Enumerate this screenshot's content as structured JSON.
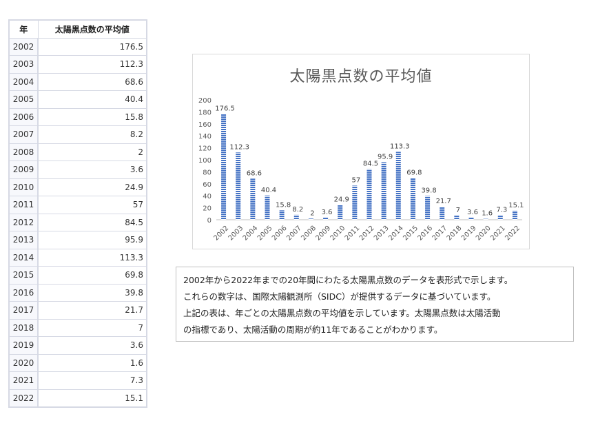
{
  "table": {
    "header_year": "年",
    "header_value": "太陽黒点数の平均値",
    "rows": [
      {
        "year": "2002",
        "value": "176.5"
      },
      {
        "year": "2003",
        "value": "112.3"
      },
      {
        "year": "2004",
        "value": "68.6"
      },
      {
        "year": "2005",
        "value": "40.4"
      },
      {
        "year": "2006",
        "value": "15.8"
      },
      {
        "year": "2007",
        "value": "8.2"
      },
      {
        "year": "2008",
        "value": "2"
      },
      {
        "year": "2009",
        "value": "3.6"
      },
      {
        "year": "2010",
        "value": "24.9"
      },
      {
        "year": "2011",
        "value": "57"
      },
      {
        "year": "2012",
        "value": "84.5"
      },
      {
        "year": "2013",
        "value": "95.9"
      },
      {
        "year": "2014",
        "value": "113.3"
      },
      {
        "year": "2015",
        "value": "69.8"
      },
      {
        "year": "2016",
        "value": "39.8"
      },
      {
        "year": "2017",
        "value": "21.7"
      },
      {
        "year": "2018",
        "value": "7"
      },
      {
        "year": "2019",
        "value": "3.6"
      },
      {
        "year": "2020",
        "value": "1.6"
      },
      {
        "year": "2021",
        "value": "7.3"
      },
      {
        "year": "2022",
        "value": "15.1"
      }
    ]
  },
  "chart_data": {
    "type": "bar",
    "title": "太陽黒点数の平均値",
    "xlabel": "",
    "ylabel": "",
    "categories": [
      "2002",
      "2003",
      "2004",
      "2005",
      "2006",
      "2007",
      "2008",
      "2009",
      "2010",
      "2011",
      "2012",
      "2013",
      "2014",
      "2015",
      "2016",
      "2017",
      "2018",
      "2019",
      "2020",
      "2021",
      "2022"
    ],
    "values": [
      176.5,
      112.3,
      68.6,
      40.4,
      15.8,
      8.2,
      2,
      3.6,
      24.9,
      57,
      84.5,
      95.9,
      113.3,
      69.8,
      39.8,
      21.7,
      7,
      3.6,
      1.6,
      7.3,
      15.1
    ],
    "data_labels": [
      "176.5",
      "112.3",
      "68.6",
      "40.4",
      "15.8",
      "8.2",
      "2",
      "3.6",
      "24.9",
      "57",
      "84.5",
      "95.9",
      "113.3",
      "69.8",
      "39.8",
      "21.7",
      "7",
      "3.6",
      "1.6",
      "7.3",
      "15.1"
    ],
    "ylim": [
      0,
      200
    ],
    "yticks": [
      "0",
      "20",
      "40",
      "60",
      "80",
      "100",
      "120",
      "140",
      "160",
      "180",
      "200"
    ],
    "grid": false,
    "bar_color": "#4472c4"
  },
  "note": {
    "lines": [
      "2002年から2022年までの20年間にわたる太陽黒点数のデータを表形式で示します。",
      "これらの数字は、国際太陽観測所（SIDC）が提供するデータに基づいています。",
      "上記の表は、年ごとの太陽黒点数の平均値を示しています。太陽黒点数は太陽活動",
      "の指標であり、太陽活動の周期が約11年であることがわかります。"
    ]
  }
}
